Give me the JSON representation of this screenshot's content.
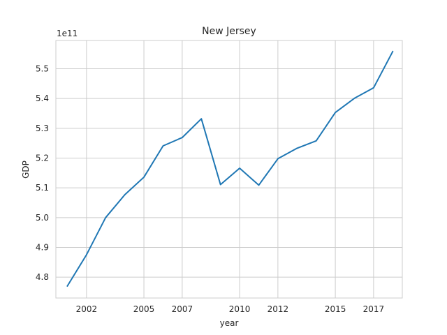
{
  "chart_data": {
    "type": "line",
    "title": "New Jersey",
    "xlabel": "year",
    "ylabel": "GDP",
    "y_offset_label": "1e11",
    "y_scale": 100000000000,
    "grid": true,
    "xlim": [
      2000.4,
      2018.5
    ],
    "ylim": [
      4.73,
      5.595
    ],
    "x_ticks": [
      {
        "value": 2002,
        "label": "2002"
      },
      {
        "value": 2005,
        "label": "2005"
      },
      {
        "value": 2007,
        "label": "2007"
      },
      {
        "value": 2010,
        "label": "2010"
      },
      {
        "value": 2012,
        "label": "2012"
      },
      {
        "value": 2015,
        "label": "2015"
      },
      {
        "value": 2017,
        "label": "2017"
      }
    ],
    "y_ticks": [
      {
        "value": 4.8,
        "label": "4.8"
      },
      {
        "value": 4.9,
        "label": "4.9"
      },
      {
        "value": 5.0,
        "label": "5.0"
      },
      {
        "value": 5.1,
        "label": "5.1"
      },
      {
        "value": 5.2,
        "label": "5.2"
      },
      {
        "value": 5.3,
        "label": "5.3"
      },
      {
        "value": 5.4,
        "label": "5.4"
      },
      {
        "value": 5.5,
        "label": "5.5"
      }
    ],
    "series": [
      {
        "color": "#1f77b4",
        "x": [
          2001,
          2002,
          2003,
          2004,
          2005,
          2006,
          2007,
          2008,
          2009,
          2010,
          2011,
          2012,
          2013,
          2014,
          2015,
          2016,
          2017,
          2018
        ],
        "y": [
          4.77,
          4.875,
          5.0,
          5.077,
          5.136,
          5.241,
          5.269,
          5.332,
          5.111,
          5.166,
          5.109,
          5.198,
          5.233,
          5.258,
          5.353,
          5.401,
          5.436,
          5.558
        ]
      }
    ]
  }
}
